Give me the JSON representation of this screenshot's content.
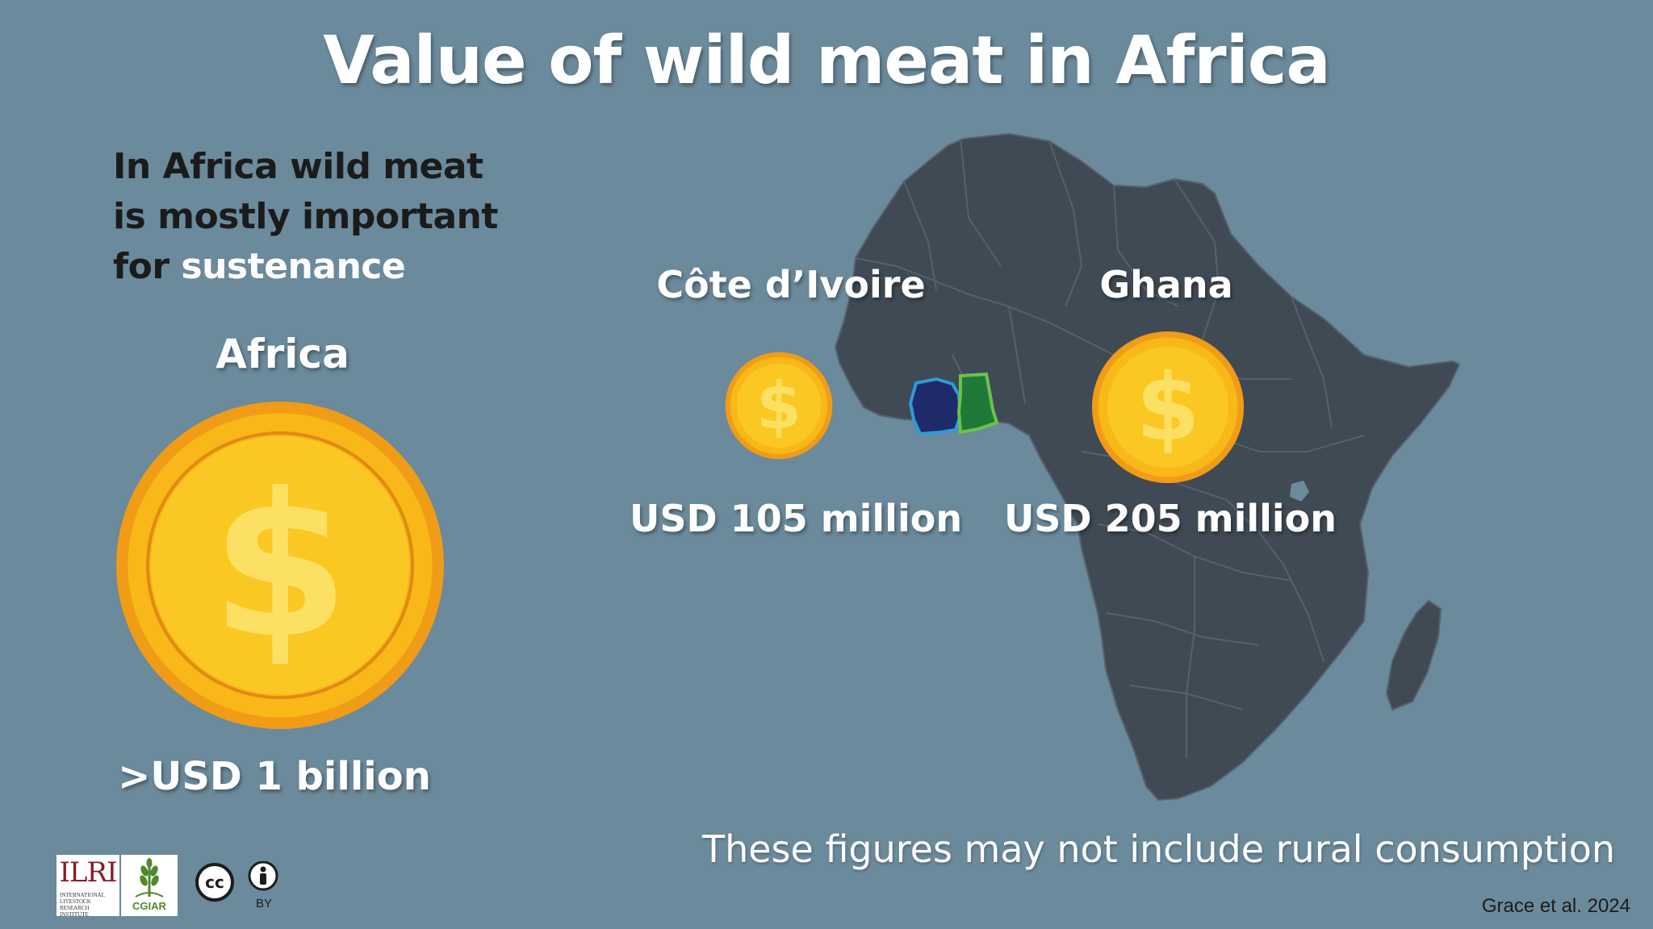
{
  "title": "Value of wild meat in Africa",
  "subtitle": {
    "line1": "In Africa wild meat",
    "line2": "is mostly important",
    "line3_prefix": "for ",
    "line3_highlight": "sustenance"
  },
  "regions": {
    "africa": {
      "label": "Africa",
      "value": ">USD 1 billion"
    },
    "cote_divoire": {
      "label": "Côte d’Ivoire",
      "value": "USD 105 million"
    },
    "ghana": {
      "label": "Ghana",
      "value": "USD 205 million"
    }
  },
  "note": "These figures may not include rural consumption",
  "citation": "Grace et al. 2024",
  "logos": {
    "ilri": {
      "acronym": "ILRI",
      "name_line1": "INTERNATIONAL",
      "name_line2": "LIVESTOCK RESEARCH",
      "name_line3": "INSTITUTE"
    },
    "cgiar": {
      "name": "CGIAR"
    },
    "license": {
      "by": "BY"
    }
  },
  "colors": {
    "background": "#6b8a9c",
    "map": "#3f4a55",
    "coin": "#f7b818",
    "cote_divoire_fill": "#1f2a6b",
    "cote_divoire_outline": "#2e9bd6",
    "ghana_fill": "#1f7a3a",
    "ghana_outline": "#6cc24a"
  }
}
